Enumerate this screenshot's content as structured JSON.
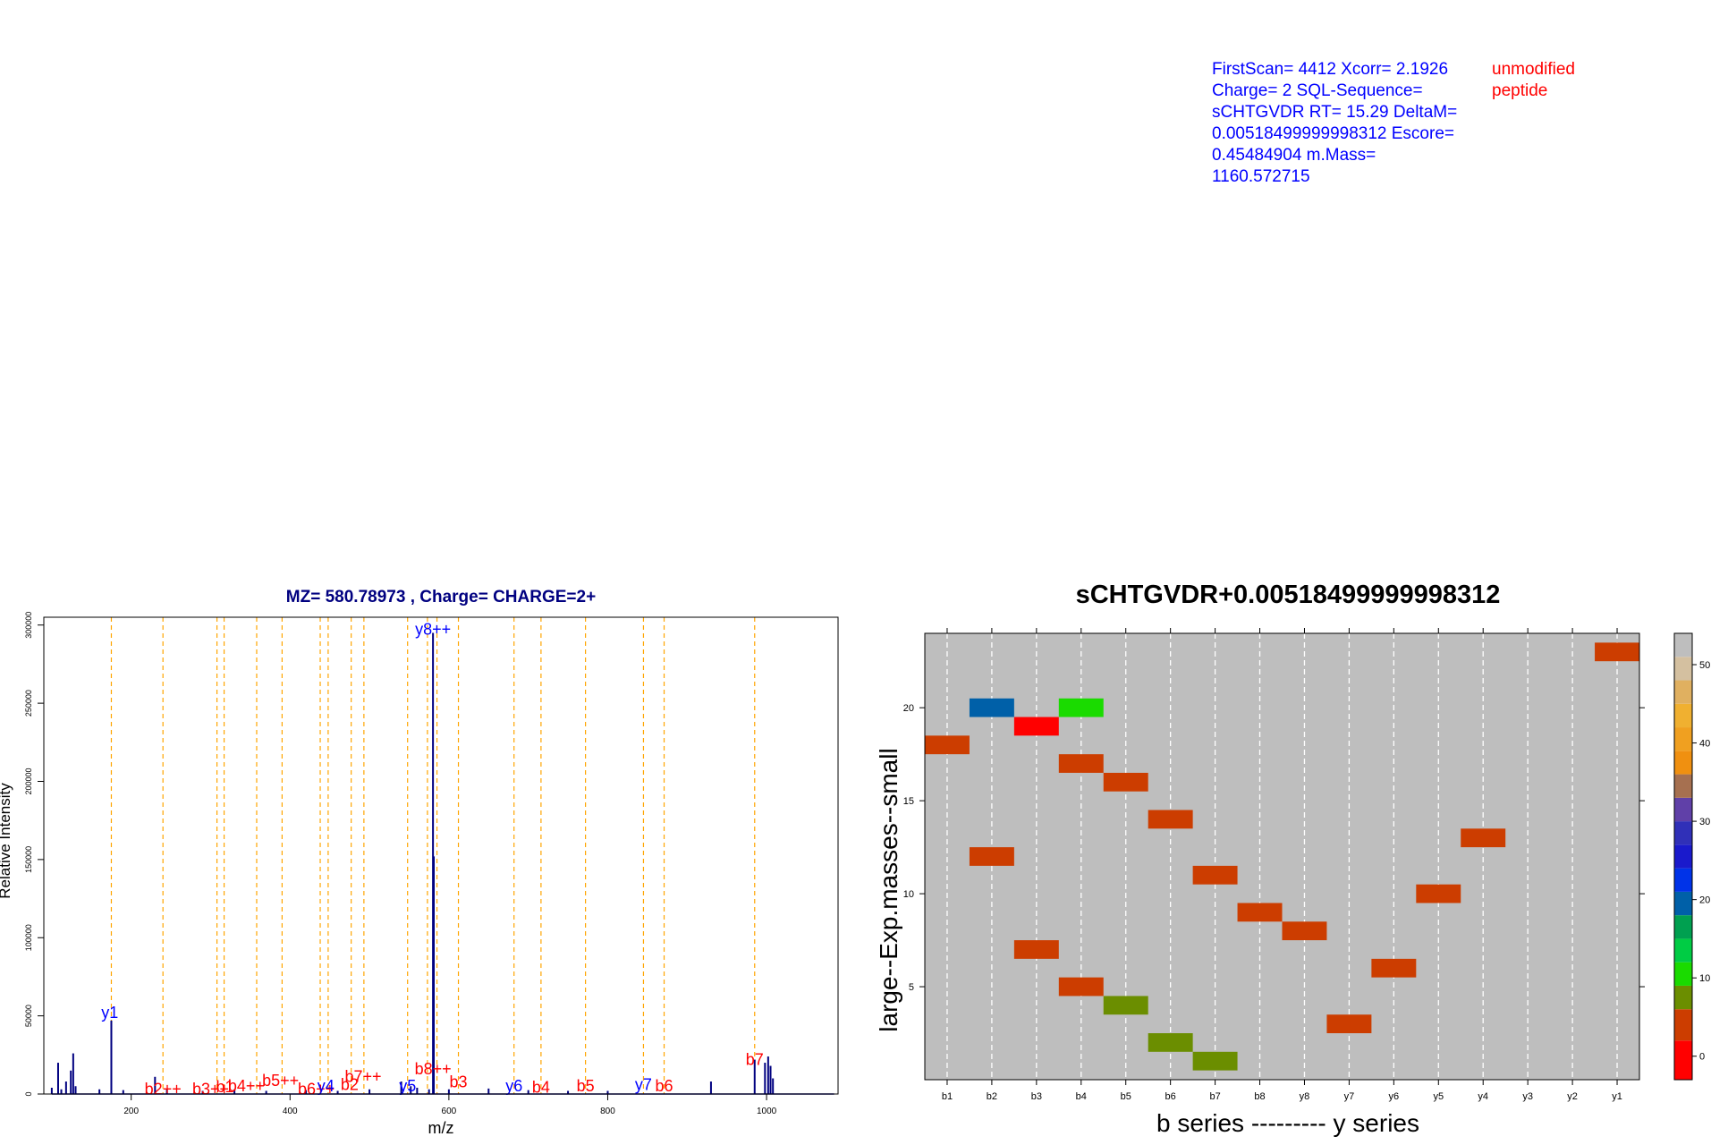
{
  "info": {
    "blue_text": "FirstScan= 4412 Xcorr= 2.1926\nCharge= 2 SQL-Sequence=\nsCHTGVDR RT= 15.29 DeltaM=\n0.00518499999998312 Escore=\n0.45484904 m.Mass=\n1160.572715",
    "red_text": "unmodified\npeptide"
  },
  "colors": {
    "title_left": "#000080",
    "spectrum": "#000080",
    "guide": "#ffa500",
    "b_ion": "#ff0000",
    "y_ion": "#0000ff",
    "panel_bg": "#bebebe",
    "cell": "#cc3d00"
  },
  "chart_data": [
    {
      "type": "line",
      "subtype": "ms2-spectrum",
      "title": "MZ= 580.78973 , Charge= CHARGE=2+",
      "xlabel": "m/z",
      "ylabel": "Relative Intensity",
      "xlim": [
        90,
        1090
      ],
      "ylim": [
        0,
        305000
      ],
      "xticks": [
        200,
        400,
        600,
        800,
        1000
      ],
      "yticks": [
        0,
        50000,
        100000,
        150000,
        200000,
        250000,
        300000
      ],
      "grid": false,
      "peaks": [
        [
          100,
          4000
        ],
        [
          108,
          20000
        ],
        [
          112,
          3000
        ],
        [
          118,
          8000
        ],
        [
          124,
          15000
        ],
        [
          127,
          26000
        ],
        [
          130,
          5000
        ],
        [
          160,
          3000
        ],
        [
          175,
          47000
        ],
        [
          190,
          2500
        ],
        [
          230,
          11000
        ],
        [
          245,
          3000
        ],
        [
          290,
          2000
        ],
        [
          330,
          3000
        ],
        [
          370,
          2000
        ],
        [
          420,
          2500
        ],
        [
          460,
          2000
        ],
        [
          500,
          3000
        ],
        [
          540,
          8000
        ],
        [
          552,
          5000
        ],
        [
          560,
          4000
        ],
        [
          575,
          3000
        ],
        [
          580,
          295000
        ],
        [
          581,
          152000
        ],
        [
          600,
          3000
        ],
        [
          650,
          3500
        ],
        [
          700,
          2500
        ],
        [
          750,
          2000
        ],
        [
          800,
          2000
        ],
        [
          930,
          8000
        ],
        [
          985,
          22000
        ],
        [
          998,
          20000
        ],
        [
          1002,
          24000
        ],
        [
          1005,
          18000
        ],
        [
          1008,
          10000
        ]
      ],
      "guide_lines": [
        175,
        240,
        308,
        317,
        358,
        390,
        438,
        448,
        477,
        493,
        548,
        573,
        585,
        612,
        682,
        716,
        772,
        845,
        871,
        985
      ],
      "annotations": [
        {
          "text": "y1",
          "x": 173,
          "y": 47000,
          "ion": "y"
        },
        {
          "text": "y8++",
          "x": 580,
          "y": 292000,
          "ion": "y"
        },
        {
          "text": "b2++",
          "x": 240,
          "y": -2000,
          "ion": "b"
        },
        {
          "text": "b3++",
          "x": 300,
          "y": -2000,
          "ion": "b"
        },
        {
          "text": "b1",
          "x": 318,
          "y": -500,
          "ion": "b"
        },
        {
          "text": "b4++",
          "x": 345,
          "y": 0,
          "ion": "b"
        },
        {
          "text": "b5++",
          "x": 388,
          "y": 3500,
          "ion": "b"
        },
        {
          "text": "b6++",
          "x": 433,
          "y": -2000,
          "ion": "b"
        },
        {
          "text": "y4",
          "x": 445,
          "y": 0,
          "ion": "y"
        },
        {
          "text": "b2",
          "x": 475,
          "y": 1000,
          "ion": "b"
        },
        {
          "text": "b7++",
          "x": 492,
          "y": 6000,
          "ion": "b"
        },
        {
          "text": "y5",
          "x": 548,
          "y": 0,
          "ion": "y"
        },
        {
          "text": "b8++",
          "x": 580,
          "y": 11000,
          "ion": "b"
        },
        {
          "text": "b3",
          "x": 612,
          "y": 2500,
          "ion": "b"
        },
        {
          "text": "y6",
          "x": 682,
          "y": 0,
          "ion": "y"
        },
        {
          "text": "b4",
          "x": 716,
          "y": -1000,
          "ion": "b"
        },
        {
          "text": "b5",
          "x": 772,
          "y": 0,
          "ion": "b"
        },
        {
          "text": "y7",
          "x": 845,
          "y": 1000,
          "ion": "y"
        },
        {
          "text": "b6",
          "x": 871,
          "y": 0,
          "ion": "b"
        },
        {
          "text": "b7",
          "x": 985,
          "y": 17000,
          "ion": "b"
        }
      ]
    },
    {
      "type": "heatmap",
      "title": "sCHTGVDR+0.00518499999998312",
      "xlabel": "b series --------- y series",
      "ylabel": "large--Exp.masses--small",
      "categories": [
        "b1",
        "b2",
        "b3",
        "b4",
        "b5",
        "b6",
        "b7",
        "b8",
        "y8",
        "y7",
        "y6",
        "y5",
        "y4",
        "y3",
        "y2",
        "y1"
      ],
      "ylim": [
        0,
        24
      ],
      "yticks": [
        5,
        10,
        15,
        20
      ],
      "background_value": 52,
      "cells": [
        {
          "col": "b1",
          "row": 18,
          "value": 5
        },
        {
          "col": "b2",
          "row": 20,
          "value": 20
        },
        {
          "col": "b2",
          "row": 12,
          "value": 5
        },
        {
          "col": "b3",
          "row": 19,
          "value": 0
        },
        {
          "col": "b3",
          "row": 7,
          "value": 5
        },
        {
          "col": "b4",
          "row": 20,
          "value": 11
        },
        {
          "col": "b4",
          "row": 17,
          "value": 5
        },
        {
          "col": "b4",
          "row": 5,
          "value": 5
        },
        {
          "col": "b5",
          "row": 16,
          "value": 5
        },
        {
          "col": "b5",
          "row": 4,
          "value": 7
        },
        {
          "col": "b6",
          "row": 14,
          "value": 5
        },
        {
          "col": "b6",
          "row": 2,
          "value": 7
        },
        {
          "col": "b7",
          "row": 11,
          "value": 5
        },
        {
          "col": "b7",
          "row": 1,
          "value": 7
        },
        {
          "col": "b8",
          "row": 9,
          "value": 5
        },
        {
          "col": "y8",
          "row": 8,
          "value": 5
        },
        {
          "col": "y7",
          "row": 3,
          "value": 5
        },
        {
          "col": "y6",
          "row": 6,
          "value": 5
        },
        {
          "col": "y5",
          "row": 10,
          "value": 5
        },
        {
          "col": "y4",
          "row": 13,
          "value": 5
        },
        {
          "col": "y1",
          "row": 23,
          "value": 5
        }
      ],
      "colorbar": {
        "ticks": [
          0,
          10,
          20,
          30,
          40,
          50
        ],
        "range": [
          -3,
          54
        ],
        "bins": [
          {
            "from": -3,
            "to": 2,
            "color": "#ff0000"
          },
          {
            "from": 2,
            "to": 6,
            "color": "#cc3d00"
          },
          {
            "from": 6,
            "to": 9,
            "color": "#6b8e00"
          },
          {
            "from": 9,
            "to": 12,
            "color": "#1adb00"
          },
          {
            "from": 12,
            "to": 15,
            "color": "#00cc44"
          },
          {
            "from": 15,
            "to": 18,
            "color": "#00a050"
          },
          {
            "from": 18,
            "to": 21,
            "color": "#0060a8"
          },
          {
            "from": 21,
            "to": 24,
            "color": "#0033e8"
          },
          {
            "from": 24,
            "to": 27,
            "color": "#1a1acc"
          },
          {
            "from": 27,
            "to": 30,
            "color": "#3030b8"
          },
          {
            "from": 30,
            "to": 33,
            "color": "#6040a8"
          },
          {
            "from": 33,
            "to": 36,
            "color": "#a67050"
          },
          {
            "from": 36,
            "to": 39,
            "color": "#f09010"
          },
          {
            "from": 39,
            "to": 42,
            "color": "#f0a020"
          },
          {
            "from": 42,
            "to": 45,
            "color": "#f0b030"
          },
          {
            "from": 45,
            "to": 48,
            "color": "#e0b060"
          },
          {
            "from": 48,
            "to": 51,
            "color": "#d4c0a0"
          },
          {
            "from": 51,
            "to": 54,
            "color": "#bebebe"
          }
        ]
      }
    }
  ]
}
